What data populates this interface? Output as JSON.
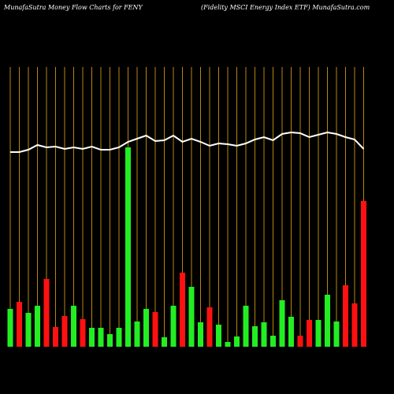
{
  "chart_data": {
    "type": "bar",
    "title": "MunafaSutra  Money Flow  Charts for FENY",
    "subtitle": "(Fidelity MSCI Energy Index ETF) MunafaSutra.com",
    "categories": [
      null,
      null,
      null,
      null,
      null,
      null,
      null,
      null,
      null,
      null,
      null,
      null,
      null,
      null,
      null,
      null,
      null,
      null,
      null,
      null,
      null,
      null,
      null,
      null,
      null,
      null,
      null,
      null,
      null,
      null,
      null,
      null,
      null,
      null,
      null,
      null,
      null,
      null,
      null,
      null
    ],
    "values": [
      48,
      57,
      43,
      52,
      86,
      25,
      39,
      52,
      35,
      24,
      24,
      16,
      24,
      253,
      32,
      48,
      44,
      12,
      52,
      94,
      76,
      31,
      50,
      28,
      6,
      13,
      52,
      26,
      31,
      14,
      59,
      38,
      14,
      34,
      34,
      66,
      32,
      78,
      55,
      185
    ],
    "colors": [
      "#22ee22",
      "#ff1111",
      "#22ee22",
      "#22ee22",
      "#ff1111",
      "#ff1111",
      "#ff1111",
      "#22ee22",
      "#ff1111",
      "#22ee22",
      "#22ee22",
      "#22ee22",
      "#22ee22",
      "#22ee22",
      "#22ee22",
      "#22ee22",
      "#ff1111",
      "#22ee22",
      "#22ee22",
      "#ff1111",
      "#22ee22",
      "#22ee22",
      "#ff1111",
      "#22ee22",
      "#22ee22",
      "#22ee22",
      "#22ee22",
      "#22ee22",
      "#22ee22",
      "#22ee22",
      "#22ee22",
      "#22ee22",
      "#ff1111",
      "#ff1111",
      "#22ee22",
      "#22ee22",
      "#22ee22",
      "#ff1111",
      "#ff1111",
      "#ff1111"
    ],
    "line": {
      "color": "#ffffff",
      "values": [
        247,
        247,
        250,
        256,
        253,
        254,
        251,
        253,
        251,
        254,
        250,
        250,
        253,
        260,
        264,
        268,
        261,
        262,
        268,
        260,
        264,
        260,
        255,
        258,
        257,
        255,
        258,
        263,
        266,
        262,
        270,
        272,
        271,
        266,
        269,
        272,
        270,
        266,
        263,
        251
      ]
    },
    "ylim": [
      0,
      355
    ],
    "gridline_color": "#b8860b"
  }
}
